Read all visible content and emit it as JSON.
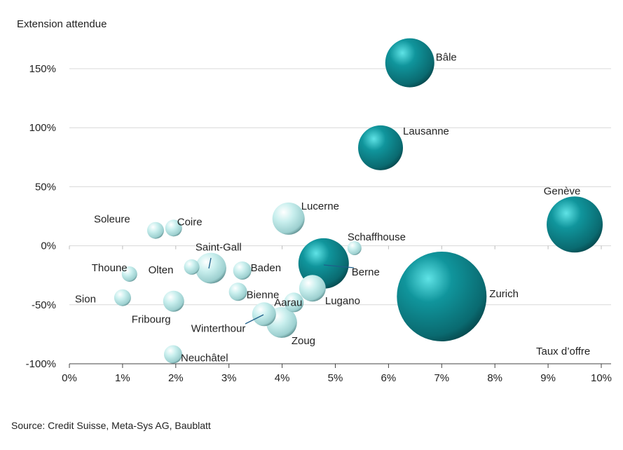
{
  "chart_data": {
    "type": "scatter",
    "subtype": "bubble",
    "ylabel": "Extension attendue",
    "xlabel": "Taux d’offre",
    "xlim": [
      0,
      10
    ],
    "ylim": [
      -100,
      150
    ],
    "x_ticks": [
      "0%",
      "1%",
      "2%",
      "3%",
      "4%",
      "5%",
      "6%",
      "7%",
      "8%",
      "9%",
      "10%"
    ],
    "y_ticks": [
      "150%",
      "100%",
      "50%",
      "0%",
      "-50%",
      "-100%"
    ],
    "y_tick_values": [
      150,
      100,
      50,
      0,
      -50,
      -100
    ],
    "x_tick_values": [
      0,
      1,
      2,
      3,
      4,
      5,
      6,
      7,
      8,
      9,
      10
    ],
    "grid": "horizontal",
    "colors": {
      "large": "#0e8a91",
      "small": "#c8f0ef"
    },
    "points": [
      {
        "name": "Bâle",
        "x": 6.4,
        "y": 155,
        "size": 35,
        "group": "large"
      },
      {
        "name": "Lausanne",
        "x": 5.85,
        "y": 83,
        "size": 32,
        "group": "large"
      },
      {
        "name": "Genève",
        "x": 9.5,
        "y": 18,
        "size": 40,
        "group": "large"
      },
      {
        "name": "Zurich",
        "x": 7.0,
        "y": -43,
        "size": 64,
        "group": "large"
      },
      {
        "name": "Berne",
        "x": 4.78,
        "y": -15,
        "size": 36,
        "group": "large"
      },
      {
        "name": "Lucerne",
        "x": 4.12,
        "y": 23,
        "size": 23,
        "group": "small"
      },
      {
        "name": "Schaffhouse",
        "x": 5.36,
        "y": -2,
        "size": 10,
        "group": "small"
      },
      {
        "name": "Lugano",
        "x": 4.57,
        "y": -36,
        "size": 19,
        "group": "small"
      },
      {
        "name": "Zoug",
        "x": 3.99,
        "y": -65,
        "size": 22,
        "group": "small"
      },
      {
        "name": "Aarau",
        "x": 4.22,
        "y": -48,
        "size": 14,
        "group": "small"
      },
      {
        "name": "Winterthour",
        "x": 3.66,
        "y": -58,
        "size": 17,
        "group": "small"
      },
      {
        "name": "Bienne",
        "x": 3.17,
        "y": -39,
        "size": 13,
        "group": "small"
      },
      {
        "name": "Baden",
        "x": 3.25,
        "y": -21,
        "size": 13,
        "group": "small"
      },
      {
        "name": "Saint-Gall",
        "x": 2.66,
        "y": -19,
        "size": 22,
        "group": "small"
      },
      {
        "name": "Olten",
        "x": 2.3,
        "y": -18,
        "size": 11,
        "group": "small"
      },
      {
        "name": "Coire",
        "x": 1.96,
        "y": 15,
        "size": 12,
        "group": "small"
      },
      {
        "name": "Soleure",
        "x": 1.62,
        "y": 13,
        "size": 12,
        "group": "small"
      },
      {
        "name": "Thoune",
        "x": 1.13,
        "y": -24,
        "size": 11,
        "group": "small"
      },
      {
        "name": "Sion",
        "x": 1.0,
        "y": -44,
        "size": 12,
        "group": "small"
      },
      {
        "name": "Fribourg",
        "x": 1.96,
        "y": -47,
        "size": 15,
        "group": "small"
      },
      {
        "name": "Neuchâtel",
        "x": 1.95,
        "y": -92,
        "size": 13,
        "group": "small"
      }
    ]
  },
  "source": "Source: Credit Suisse, Meta-Sys AG, Baublatt"
}
